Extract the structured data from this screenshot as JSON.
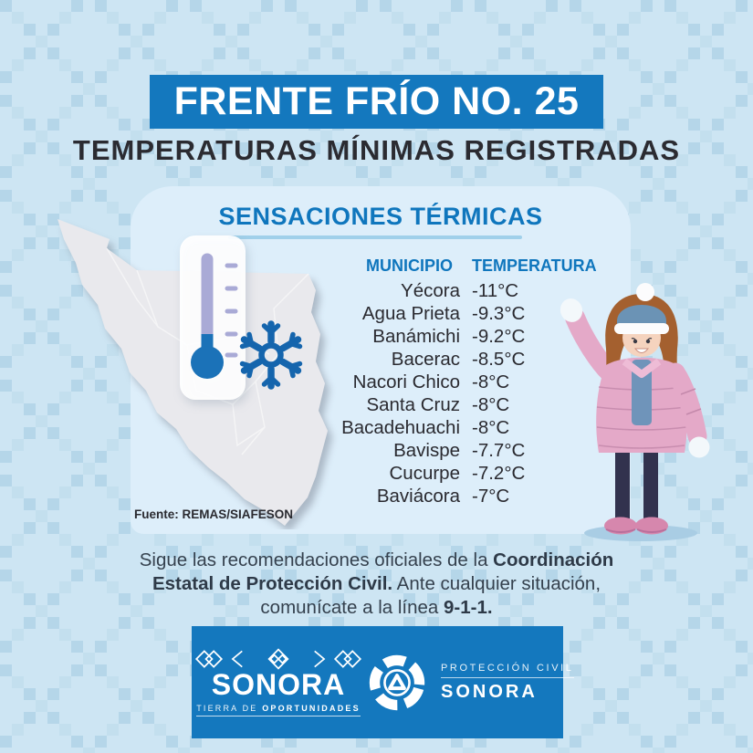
{
  "header": {
    "banner": "FRENTE FRÍO NO. 25",
    "subtitle": "TEMPERATURAS MÍNIMAS REGISTRADAS"
  },
  "card": {
    "title": "SENSACIONES TÉRMICAS",
    "table": {
      "columns": [
        "MUNICIPIO",
        "TEMPERATURA"
      ],
      "rows": [
        [
          "Yécora",
          "-11°C"
        ],
        [
          "Agua Prieta",
          "-9.3°C"
        ],
        [
          "Banámichi",
          "-9.2°C"
        ],
        [
          "Bacerac",
          "-8.5°C"
        ],
        [
          "Nacori Chico",
          "-8°C"
        ],
        [
          "Santa Cruz",
          "-8°C"
        ],
        [
          "Bacadehuachi",
          "-8°C"
        ],
        [
          "Bavispe",
          "-7.7°C"
        ],
        [
          "Cucurpe",
          "-7.2°C"
        ],
        [
          "Baviácora",
          "-7°C"
        ]
      ]
    },
    "source": "Fuente: REMAS/SIAFESON"
  },
  "recommendation": {
    "lines": [
      [
        {
          "t": "Sigue las recomendaciones oficiales de la ",
          "b": false
        },
        {
          "t": "Coordinación",
          "b": true
        }
      ],
      [
        {
          "t": "Estatal de Protección Civil.",
          "b": true
        },
        {
          "t": " Ante cualquier situación,",
          "b": false
        }
      ],
      [
        {
          "t": "comunícate a la línea ",
          "b": false
        },
        {
          "t": "9-1-1.",
          "b": true
        }
      ]
    ]
  },
  "footer": {
    "sonora": {
      "name": "SONORA",
      "tagline_light": "TIERRA DE ",
      "tagline_bold": "OPORTUNIDADES",
      "ornament_icon": "sonora-diamonds-ornament"
    },
    "proteccion_civil": {
      "line1": "PROTECCIÓN CIVIL",
      "line2": "SONORA",
      "emblem_icon": "civil-protection-emblem"
    }
  },
  "icons": {
    "thermometer": "thermometer-icon",
    "snowflake": "snowflake-icon",
    "map": "sonora-state-map",
    "illustration": "woman-in-winter-clothes"
  },
  "colors": {
    "background": "#cde5f3",
    "pattern_square": "#b5d6e9",
    "banner_blue": "#1478be",
    "accent_blue": "#0f76bd",
    "dark_text": "#2b2b31",
    "card_bg": "#ddeefa",
    "snow_blue": "#1565ad",
    "lavender": "#a9aad6",
    "bulb_blue": "#1b72b8",
    "jacket_pink": "#e4a9c8"
  }
}
